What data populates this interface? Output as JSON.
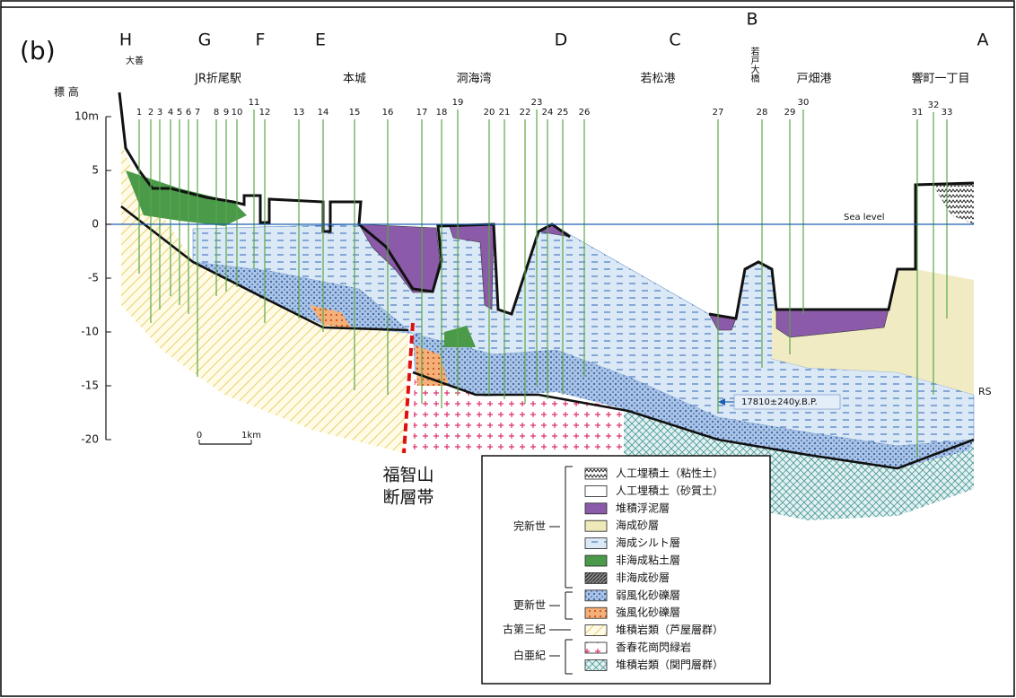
{
  "panel_label": "(b)",
  "sections": [
    "H",
    "G",
    "F",
    "E",
    "D",
    "C",
    "B",
    "A"
  ],
  "places": [
    "大善",
    "JR折尾駅",
    "本城",
    "洞海湾",
    "若松港",
    "若戸大橋",
    "戸畑港",
    "響町一丁目"
  ],
  "axis": {
    "title": "標 高",
    "ticks": [
      "10m",
      "5",
      "0",
      "-5",
      "-10",
      "-15",
      "-20"
    ]
  },
  "boreholes": [
    "1",
    "2",
    "3",
    "4",
    "5",
    "6",
    "7",
    "8",
    "9",
    "10",
    "11",
    "12",
    "13",
    "14",
    "15",
    "16",
    "17",
    "18",
    "19",
    "20",
    "21",
    "22",
    "23",
    "24",
    "25",
    "26",
    "27",
    "28",
    "29",
    "30",
    "31",
    "32",
    "33"
  ],
  "annotations": {
    "sea_level": "Sea level",
    "rs": "RS",
    "date": "17810±240y.B.P.",
    "fault": [
      "福智山",
      "断層帯"
    ]
  },
  "scale_bar": {
    "start": "0",
    "end": "1km"
  },
  "legend": {
    "groups": [
      {
        "era": "完新世",
        "items": [
          "人工埋積土（粘性土）",
          "人工埋積土（砂質土）",
          "堆積浮泥層",
          "海成砂層",
          "海成シルト層",
          "非海成粘土層",
          "非海成砂層"
        ]
      },
      {
        "era": "更新世",
        "items": [
          "弱風化砂礫層",
          "強風化砂礫層"
        ]
      },
      {
        "era": "古第三紀",
        "items": [
          "堆積岩類（芦屋層群）"
        ]
      },
      {
        "era": "白亜紀",
        "items": [
          "香春花崗閃緑岩",
          "堆積岩類（関門層群）"
        ]
      }
    ]
  }
}
